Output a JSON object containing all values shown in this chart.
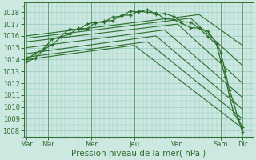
{
  "bg_color": "#cce8e0",
  "grid_color": "#9ecfc4",
  "line_color": "#2d6e2d",
  "xlabel": "Pression niveau de la mer( hPa )",
  "xtick_labels": [
    "Mar",
    "Mar",
    "Mer",
    "Jeu",
    "Ven",
    "Sam",
    "Dir"
  ],
  "xtick_positions": [
    0,
    0.5,
    1.5,
    2.5,
    3.5,
    4.5,
    5.0
  ],
  "ylim": [
    1007.5,
    1018.8
  ],
  "yticks": [
    1008,
    1009,
    1010,
    1011,
    1012,
    1013,
    1014,
    1015,
    1016,
    1017,
    1018
  ],
  "xlim": [
    -0.05,
    5.25
  ],
  "smooth_series": [
    {
      "x": [
        0,
        2.5,
        5.0
      ],
      "y": [
        1014.0,
        1015.2,
        1008.2
      ]
    },
    {
      "x": [
        0,
        2.8,
        5.0
      ],
      "y": [
        1014.2,
        1015.5,
        1009.0
      ]
    },
    {
      "x": [
        0,
        3.0,
        5.0
      ],
      "y": [
        1014.5,
        1016.0,
        1009.8
      ]
    },
    {
      "x": [
        0,
        3.2,
        5.0
      ],
      "y": [
        1015.0,
        1016.5,
        1010.8
      ]
    },
    {
      "x": [
        0,
        3.5,
        5.0
      ],
      "y": [
        1015.5,
        1017.0,
        1012.0
      ]
    },
    {
      "x": [
        0,
        3.8,
        5.0
      ],
      "y": [
        1015.8,
        1017.5,
        1013.5
      ]
    },
    {
      "x": [
        0,
        4.0,
        5.0
      ],
      "y": [
        1016.0,
        1017.8,
        1015.2
      ]
    }
  ],
  "noisy_x": [
    0,
    0.2,
    0.4,
    0.6,
    0.8,
    1.0,
    1.2,
    1.4,
    1.6,
    1.8,
    2.0,
    2.2,
    2.4,
    2.6,
    2.8,
    3.0,
    3.2,
    3.4,
    3.6,
    3.8,
    4.0,
    4.2,
    4.4,
    4.5,
    4.6,
    4.7,
    4.8,
    4.9,
    5.0
  ],
  "noisy_y1": [
    1014.0,
    1014.4,
    1015.0,
    1015.6,
    1016.0,
    1016.4,
    1016.6,
    1016.9,
    1017.1,
    1017.3,
    1017.5,
    1017.7,
    1017.9,
    1018.1,
    1018.2,
    1018.0,
    1017.8,
    1017.5,
    1017.3,
    1017.1,
    1016.8,
    1016.2,
    1015.5,
    1014.5,
    1013.0,
    1011.5,
    1010.2,
    1009.0,
    1008.2
  ],
  "noisy_y2": [
    1013.8,
    1014.2,
    1014.8,
    1015.4,
    1015.8,
    1016.2,
    1016.5,
    1016.7,
    1017.0,
    1017.2,
    1017.4,
    1017.6,
    1017.8,
    1018.0,
    1018.1,
    1017.9,
    1017.6,
    1017.3,
    1017.0,
    1016.8,
    1016.5,
    1016.0,
    1015.2,
    1014.0,
    1012.5,
    1010.8,
    1009.5,
    1008.8,
    1008.0
  ],
  "noisy_noise1": [
    0.0,
    0.1,
    -0.1,
    0.15,
    -0.05,
    0.2,
    -0.1,
    0.1,
    0.05,
    -0.15,
    0.1,
    -0.05,
    0.2,
    -0.1,
    0.05,
    -0.2,
    0.1,
    0.15,
    -0.1,
    0.05,
    -0.15,
    0.2,
    -0.1,
    0.1,
    0.05,
    -0.1,
    0.15,
    -0.05,
    0.1
  ],
  "noisy_noise2": [
    0.0,
    -0.1,
    0.05,
    -0.15,
    0.1,
    -0.05,
    0.15,
    -0.1,
    0.1,
    0.05,
    -0.1,
    0.15,
    -0.05,
    0.1,
    -0.1,
    0.05,
    -0.15,
    0.1,
    0.05,
    -0.1,
    0.15,
    -0.05,
    0.1,
    -0.1,
    0.05,
    0.1,
    -0.05,
    0.15,
    -0.1
  ]
}
